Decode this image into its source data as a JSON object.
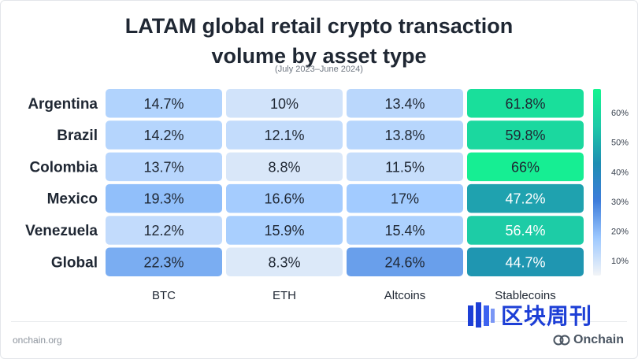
{
  "title": {
    "line1": "LATAM global retail crypto transaction",
    "line2": "volume by asset type"
  },
  "subtitle": "(July 2023–June 2024)",
  "chart_data": {
    "type": "heatmap",
    "title": "LATAM global retail crypto transaction volume by asset type",
    "subtitle": "(July 2023–June 2024)",
    "rows": [
      "Argentina",
      "Brazil",
      "Colombia",
      "Mexico",
      "Venezuela",
      "Global"
    ],
    "columns": [
      "BTC",
      "ETH",
      "Altcoins",
      "Stablecoins"
    ],
    "values": [
      [
        14.7,
        10,
        13.4,
        61.8
      ],
      [
        14.2,
        12.1,
        13.8,
        59.8
      ],
      [
        13.7,
        8.8,
        11.5,
        66
      ],
      [
        19.3,
        16.6,
        17,
        47.2
      ],
      [
        12.2,
        15.9,
        15.4,
        56.4
      ],
      [
        22.3,
        8.3,
        24.6,
        44.7
      ]
    ],
    "labels": [
      [
        "14.7%",
        "10%",
        "13.4%",
        "61.8%"
      ],
      [
        "14.2%",
        "12.1%",
        "13.8%",
        "59.8%"
      ],
      [
        "13.7%",
        "8.8%",
        "11.5%",
        "66%"
      ],
      [
        "19.3%",
        "16.6%",
        "17%",
        "47.2%"
      ],
      [
        "12.2%",
        "15.9%",
        "15.4%",
        "56.4%"
      ],
      [
        "22.3%",
        "8.3%",
        "24.6%",
        "44.7%"
      ]
    ],
    "colorbar": {
      "ticks": [
        10,
        20,
        30,
        40,
        50,
        60
      ],
      "tick_labels": [
        "10%",
        "20%",
        "30%",
        "40%",
        "50%",
        "60%"
      ],
      "range": [
        5,
        68
      ],
      "stops": [
        "#f2f4f7",
        "#9ec9ff",
        "#3e7ddb",
        "#1f8db3",
        "#1ec9a8",
        "#14f58f"
      ]
    },
    "grid": false,
    "legend": "right"
  },
  "source": "onchain.org",
  "watermark": "区块周刊",
  "brand": "Onchain"
}
